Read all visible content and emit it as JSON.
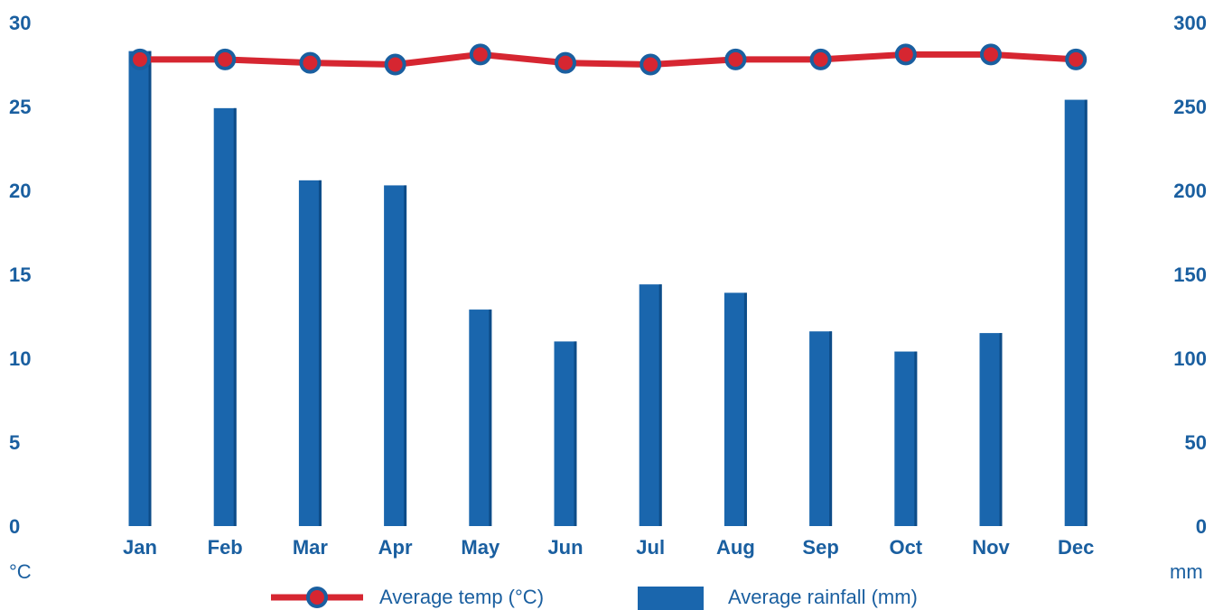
{
  "chart_data": {
    "type": "bar",
    "categories": [
      "Jan",
      "Feb",
      "Mar",
      "Apr",
      "May",
      "Jun",
      "Jul",
      "Aug",
      "Sep",
      "Oct",
      "Nov",
      "Dec"
    ],
    "series": [
      {
        "name": "Average temp (°C)",
        "chart_type": "line",
        "axis": "left",
        "values": [
          27.8,
          27.8,
          27.6,
          27.5,
          28.1,
          27.6,
          27.5,
          27.8,
          27.8,
          28.1,
          28.1,
          27.8
        ]
      },
      {
        "name": "Average rainfall (mm)",
        "chart_type": "bar",
        "axis": "right",
        "values": [
          283,
          249,
          206,
          203,
          129,
          110,
          144,
          139,
          116,
          104,
          115,
          254
        ]
      }
    ],
    "left_axis": {
      "unit": "°C",
      "ylim": [
        0,
        30
      ],
      "ticks": [
        "0",
        "5",
        "10",
        "15",
        "20",
        "25",
        "30"
      ]
    },
    "right_axis": {
      "unit": "mm",
      "ylim": [
        0,
        300
      ],
      "ticks": [
        "0",
        "50",
        "100",
        "150",
        "200",
        "250",
        "300"
      ]
    },
    "grid": false,
    "legend_position": "bottom",
    "colors": {
      "temp_line": "#d62631",
      "temp_marker_ring": "#1a5fa0",
      "rain_bar": "#1a66ad",
      "rain_bar_shade": "#0d4c88",
      "text": "#1a5fa0"
    }
  }
}
